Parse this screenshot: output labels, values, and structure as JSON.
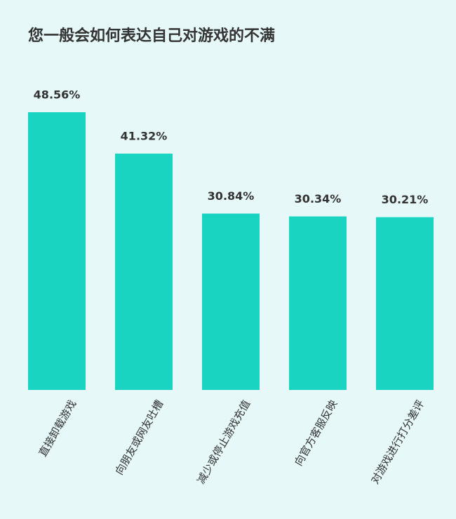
{
  "chart_data": {
    "type": "bar",
    "title": "您一般会如何表达自己对游戏的不满",
    "categories": [
      "直接卸载游戏",
      "向朋友或网友吐槽",
      "减少或停止游戏充值",
      "向官方客服反映",
      "对游戏进行打分差评"
    ],
    "values": [
      48.56,
      41.32,
      30.84,
      30.34,
      30.21
    ],
    "value_labels": [
      "48.56%",
      "41.32%",
      "30.84%",
      "30.34%",
      "30.21%"
    ],
    "color": "#19d4c0"
  }
}
